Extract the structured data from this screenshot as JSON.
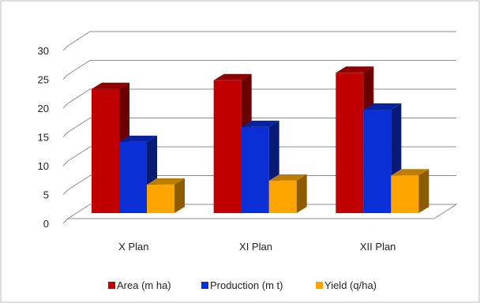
{
  "chart_data": {
    "type": "bar",
    "style": "3d-clustered-column",
    "categories": [
      "X Plan",
      "XI Plan",
      "XII Plan"
    ],
    "series": [
      {
        "name": "Area (m ha)",
        "color": "#C00000",
        "values": [
          22.5,
          24.0,
          25.3
        ]
      },
      {
        "name": "Production (m t)",
        "color": "#0A2FD6",
        "values": [
          13.3,
          15.9,
          18.9
        ]
      },
      {
        "name": "Yield (q/ha)",
        "color": "#FFA500",
        "values": [
          5.9,
          6.6,
          7.5
        ]
      }
    ],
    "yticks": [
      "0",
      "5",
      "10",
      "15",
      "20",
      "25",
      "30"
    ],
    "ylim": [
      0,
      30
    ],
    "grid": true,
    "legend_position": "bottom"
  }
}
